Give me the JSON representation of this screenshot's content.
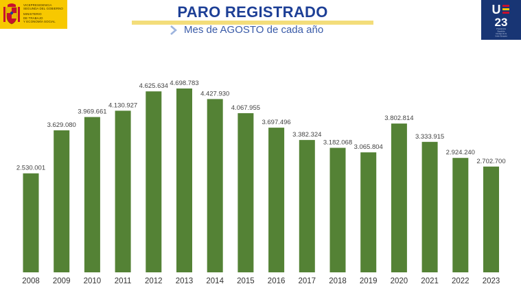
{
  "header": {
    "title": "PARO REGISTRADO",
    "subtitle": "Mes de AGOSTO de cada año",
    "gov_logo_lines": [
      "Vicepresidencia",
      "Segunda del Gobierno",
      "",
      "Ministerio",
      "de Trabajo",
      "y Economía Social"
    ],
    "ue_logo_text": [
      "U",
      "23"
    ],
    "ue_logo_small": [
      "Presidencia",
      "Española",
      "Consejo de la",
      "Unión Europea"
    ]
  },
  "colors": {
    "bar": "#548235",
    "title": "#1d3f96",
    "accent_yellow": "#f7c800",
    "eu_blue": "#183574"
  },
  "chart_data": {
    "type": "bar",
    "categories": [
      "2008",
      "2009",
      "2010",
      "2011",
      "2012",
      "2013",
      "2014",
      "2015",
      "2016",
      "2017",
      "2018",
      "2019",
      "2020",
      "2021",
      "2022",
      "2023"
    ],
    "values": [
      2530001,
      3629080,
      3969661,
      4130927,
      4625634,
      4698783,
      4427930,
      4067955,
      3697496,
      3382324,
      3182068,
      3065804,
      3802814,
      3333915,
      2924240,
      2702700
    ],
    "value_labels": [
      "2.530.001",
      "3.629.080",
      "3.969.661",
      "4.130.927",
      "4.625.634",
      "4.698.783",
      "4.427.930",
      "4.067.955",
      "3.697.496",
      "3.382.324",
      "3.182.068",
      "3.065.804",
      "3.802.814",
      "3.333.915",
      "2.924.240",
      "2.702.700"
    ],
    "title": "",
    "xlabel": "",
    "ylabel": "",
    "ylim": [
      0,
      4698783
    ],
    "grid": false,
    "legend": "none"
  }
}
